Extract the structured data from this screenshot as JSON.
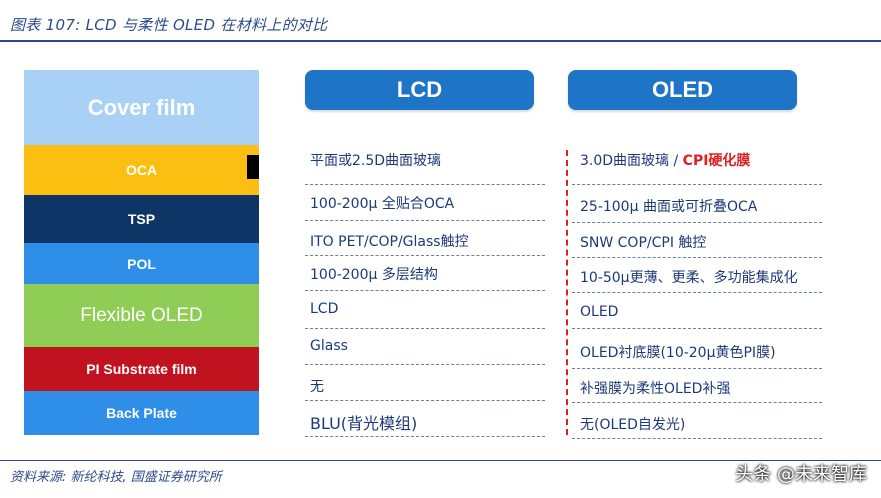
{
  "figure_title": "图表 107:  LCD 与柔性 OLED 在材料上的对比",
  "source": "资料来源:  新纶科技,  国盛证券研究所",
  "watermark": "头条 @未来智库",
  "stack_layers": [
    {
      "label": "Cover film",
      "color": "#a9d0f5"
    },
    {
      "label": "OCA",
      "color": "#fbbf11"
    },
    {
      "label": "TSP",
      "color": "#0d3566"
    },
    {
      "label": "POL",
      "color": "#2f8ee8"
    },
    {
      "label": "Flexible OLED",
      "color": "#8fcd56"
    },
    {
      "label": "PI Substrate film",
      "color": "#c1121f"
    },
    {
      "label": "Back  Plate",
      "color": "#2f8ee8"
    }
  ],
  "headers": {
    "lcd": "LCD",
    "oled": "OLED"
  },
  "lcd_rows": [
    "平面或2.5D曲面玻璃",
    "100-200μ 全贴合OCA",
    "ITO PET/COP/Glass触控",
    "100-200μ 多层结构",
    "LCD",
    "Glass",
    "无",
    "BLU(背光模组)"
  ],
  "oled_rows": [
    {
      "text": "3.0D曲面玻璃 / ",
      "highlight": "CPI硬化膜"
    },
    {
      "text": "25-100μ 曲面或可折叠OCA",
      "highlight": ""
    },
    {
      "text": "SNW COP/CPI 触控",
      "highlight": ""
    },
    {
      "text": "10-50μ更薄、更柔、多功能集成化",
      "highlight": ""
    },
    {
      "text": "OLED",
      "highlight": ""
    },
    {
      "text": "OLED衬底膜(10-20μ黄色PI膜)",
      "highlight": ""
    },
    {
      "text": "补强膜为柔性OLED补强",
      "highlight": ""
    },
    {
      "text": "无(OLED自发光)",
      "highlight": ""
    }
  ]
}
